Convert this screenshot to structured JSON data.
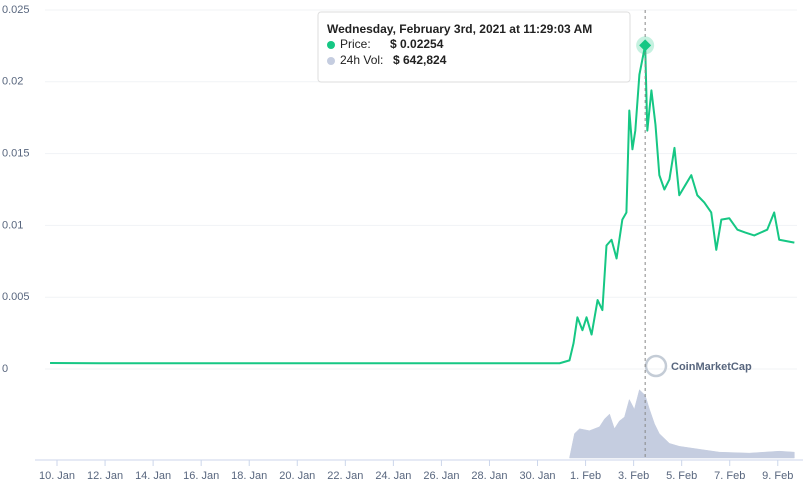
{
  "chart_data": {
    "type": "line",
    "ylim": [
      0,
      0.025
    ],
    "yticks": [
      0,
      0.005,
      0.01,
      0.015,
      0.02,
      0.025
    ],
    "y2lim": [
      0,
      800000
    ],
    "xlim": [
      9.5,
      40.8
    ],
    "xticks": [
      {
        "value": 10,
        "label": "10. Jan"
      },
      {
        "value": 12,
        "label": "12. Jan"
      },
      {
        "value": 14,
        "label": "14. Jan"
      },
      {
        "value": 16,
        "label": "16. Jan"
      },
      {
        "value": 18,
        "label": "18. Jan"
      },
      {
        "value": 20,
        "label": "20. Jan"
      },
      {
        "value": 22,
        "label": "22. Jan"
      },
      {
        "value": 24,
        "label": "24. Jan"
      },
      {
        "value": 26,
        "label": "26. Jan"
      },
      {
        "value": 28,
        "label": "28. Jan"
      },
      {
        "value": 30,
        "label": "30. Jan"
      },
      {
        "value": 32,
        "label": "1. Feb"
      },
      {
        "value": 34,
        "label": "3. Feb"
      },
      {
        "value": 36,
        "label": "5. Feb"
      },
      {
        "value": 38,
        "label": "7. Feb"
      },
      {
        "value": 40,
        "label": "9. Feb"
      }
    ],
    "grid": true,
    "series": [
      {
        "name": "Price:",
        "color": "#16c784",
        "x": [
          9.71,
          11.79,
          15.95,
          20.1,
          24.26,
          28.42,
          30.92,
          31.33,
          31.5,
          31.66,
          31.87,
          32.04,
          32.25,
          32.5,
          32.7,
          32.87,
          33.08,
          33.29,
          33.53,
          33.7,
          33.82,
          33.95,
          34.07,
          34.24,
          34.48,
          34.57,
          34.74,
          34.91,
          35.07,
          35.28,
          35.49,
          35.7,
          35.9,
          36.15,
          36.4,
          36.65,
          36.94,
          37.23,
          37.44,
          37.65,
          37.98,
          38.32,
          38.65,
          39.02,
          39.56,
          39.85,
          40.06,
          40.69
        ],
        "values": [
          0.00042,
          0.0004,
          0.0004,
          0.0004,
          0.0004,
          0.0004,
          0.0004,
          0.0006,
          0.0018,
          0.0036,
          0.0027,
          0.0036,
          0.0024,
          0.0048,
          0.0041,
          0.0086,
          0.009,
          0.0077,
          0.0104,
          0.0109,
          0.018,
          0.0153,
          0.0166,
          0.0205,
          0.02254,
          0.0166,
          0.0194,
          0.017,
          0.0135,
          0.0125,
          0.0132,
          0.0154,
          0.0121,
          0.0128,
          0.0135,
          0.0121,
          0.0116,
          0.0109,
          0.0083,
          0.0104,
          0.0105,
          0.0097,
          0.0095,
          0.0093,
          0.0097,
          0.0109,
          0.009,
          0.0088
        ]
      },
      {
        "name": "24h Vol:",
        "color": "#c5cde0",
        "axis": "y2",
        "x": [
          31.33,
          31.54,
          31.75,
          32.16,
          32.58,
          32.79,
          33.0,
          33.2,
          33.41,
          33.62,
          33.82,
          34.03,
          34.24,
          34.48,
          34.66,
          34.87,
          35.07,
          35.49,
          35.9,
          36.73,
          37.57,
          38.81,
          40.06,
          40.69
        ],
        "values": [
          0,
          250000,
          300000,
          280000,
          320000,
          400000,
          450000,
          300000,
          380000,
          420000,
          600000,
          500000,
          700000,
          642824,
          500000,
          350000,
          250000,
          150000,
          120000,
          90000,
          60000,
          50000,
          70000,
          60000
        ]
      }
    ],
    "tooltip": {
      "date": "Wednesday, February 3rd, 2021 at 11:29:03 AM",
      "x": 34.48,
      "price_label": "$ 0.02254",
      "volume_label": "$ 642,824"
    },
    "watermark": "CoinMarketCap"
  }
}
